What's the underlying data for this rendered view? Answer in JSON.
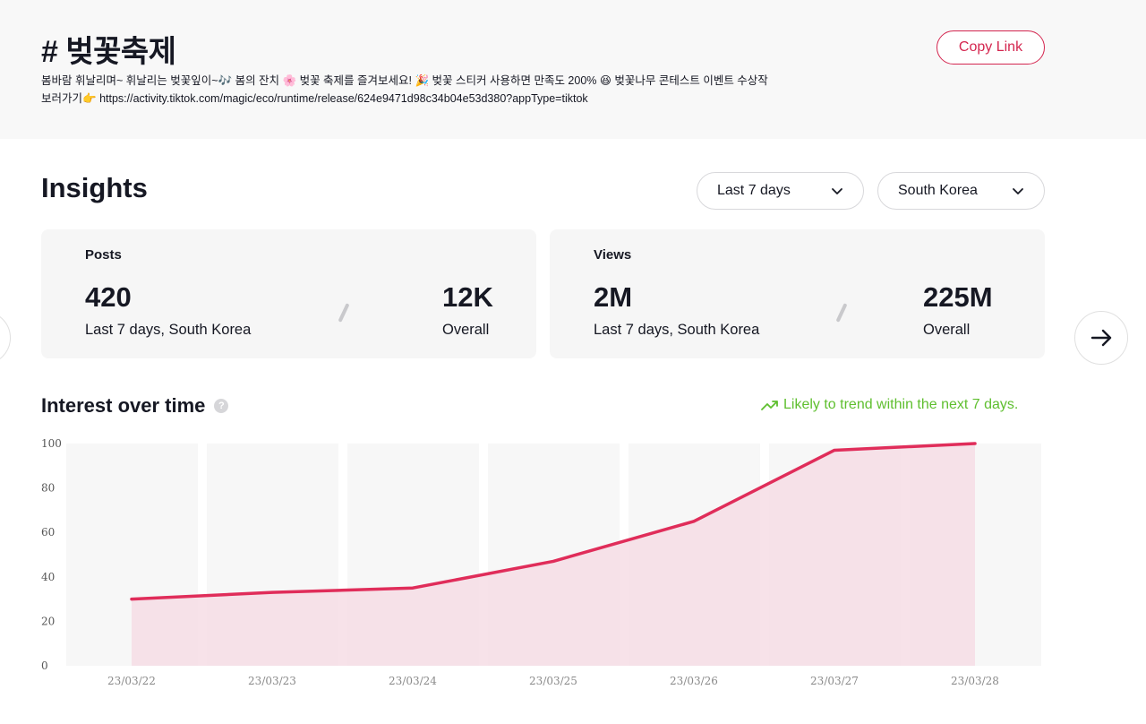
{
  "hashtag": {
    "title": "# 벚꽃축제",
    "description_line1": "봄바람 휘날리며~ 휘날리는 벚꽃잎이~",
    "emoji_music": "🎶",
    "description_mid1": " 봄의 잔치 ",
    "emoji_blossom": "🌸",
    "description_mid2": " 벚꽃 축제를 즐겨보세요! ",
    "emoji_party": "🎉",
    "description_mid3": " 벚꽃 스티커 사용하면 만족도 200% ",
    "emoji_laugh": "😆",
    "description_mid4": " 벚꽃나무 콘테스트 이벤트 수상작",
    "description_line2_prefix": "보러가기",
    "emoji_point": "👉",
    "description_link": " https://activity.tiktok.com/magic/eco/runtime/release/624e9471d98c34b04e53d380?appType=tiktok",
    "copy_link_label": "Copy Link"
  },
  "insights": {
    "title": "Insights",
    "period_selected": "Last 7 days",
    "region_selected": "South Korea"
  },
  "cards": {
    "posts": {
      "label": "Posts",
      "recent_value": "420",
      "recent_caption": "Last 7 days, South Korea",
      "overall_value": "12K",
      "overall_caption": "Overall"
    },
    "views": {
      "label": "Views",
      "recent_value": "2M",
      "recent_caption": "Last 7 days, South Korea",
      "overall_value": "225M",
      "overall_caption": "Overall"
    }
  },
  "interest": {
    "title": "Interest over time",
    "help_glyph": "?",
    "trend_note": "Likely to trend within the next 7 days."
  },
  "colors": {
    "accent": "#d4264f",
    "line": "#e02d5a",
    "area": "#f6dde5",
    "trend_green": "#5fbf2f",
    "column_bg": "#f7f7f7"
  },
  "chart_data": {
    "type": "area",
    "title": "Interest over time",
    "categories": [
      "23/03/22",
      "23/03/23",
      "23/03/24",
      "23/03/25",
      "23/03/26",
      "23/03/27",
      "23/03/28"
    ],
    "series": [
      {
        "name": "Interest",
        "values": [
          30,
          33,
          35,
          47,
          65,
          97,
          100
        ]
      }
    ],
    "yticks": [
      0,
      20,
      40,
      60,
      80,
      100
    ],
    "ylim": [
      0,
      100
    ],
    "xlabel": "",
    "ylabel": ""
  }
}
